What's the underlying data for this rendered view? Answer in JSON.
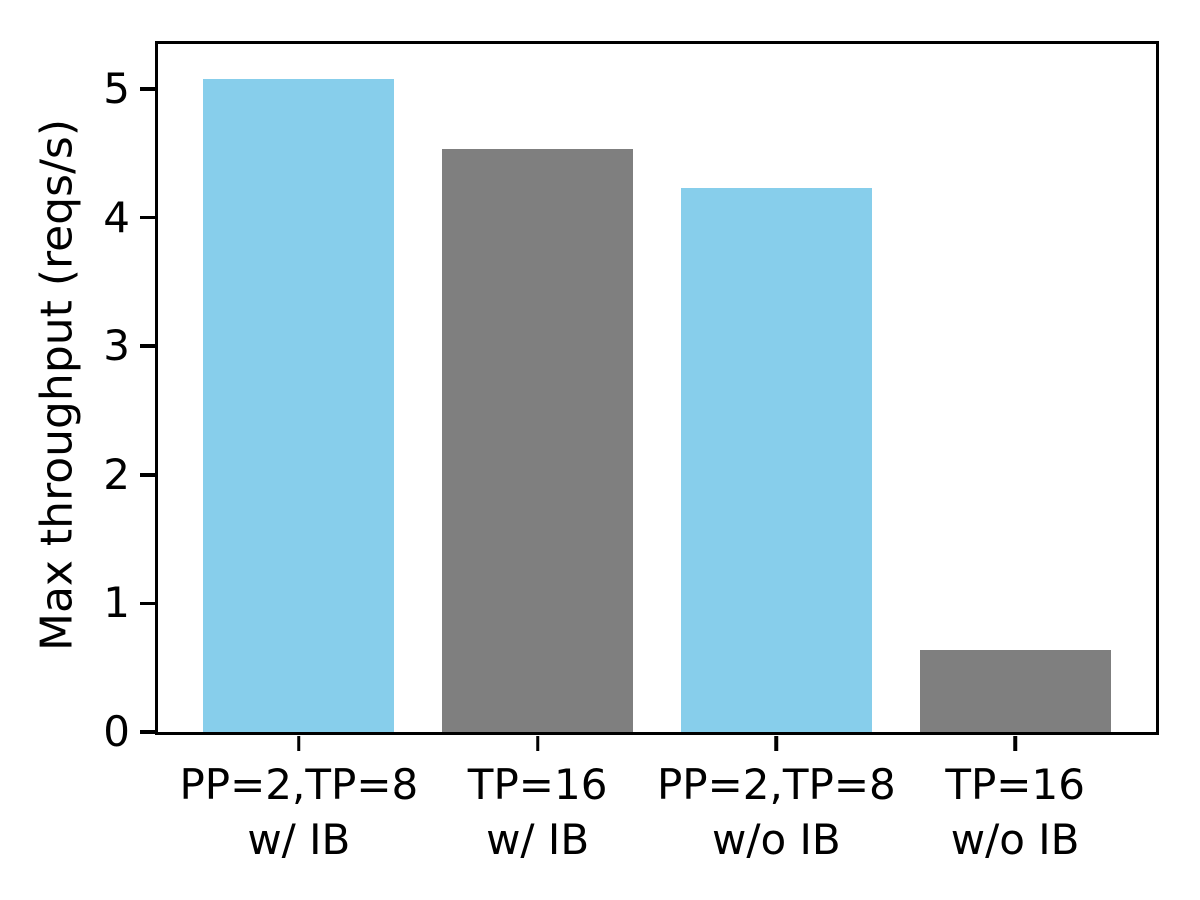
{
  "chart_data": {
    "type": "bar",
    "categories": [
      "PP=2,TP=8\nw/ IB",
      "TP=16\nw/ IB",
      "PP=2,TP=8\nw/o IB",
      "TP=16\nw/o IB"
    ],
    "values": [
      5.08,
      4.53,
      4.23,
      0.64
    ],
    "bar_colors": [
      "#87ceeb",
      "#7f7f7f",
      "#87ceeb",
      "#7f7f7f"
    ],
    "title": "",
    "xlabel": "",
    "ylabel": "Max throughput (reqs/s)",
    "ylim": [
      0,
      5.35
    ],
    "yticks": [
      "0",
      "1",
      "2",
      "3",
      "4",
      "5"
    ],
    "xlim": [
      -0.59,
      3.59
    ],
    "bar_width": 0.8,
    "grid": false,
    "legend": null,
    "colors": {
      "blue_bar": "#87ceeb",
      "gray_bar": "#7f7f7f",
      "axis": "#000000",
      "background": "#ffffff"
    }
  }
}
